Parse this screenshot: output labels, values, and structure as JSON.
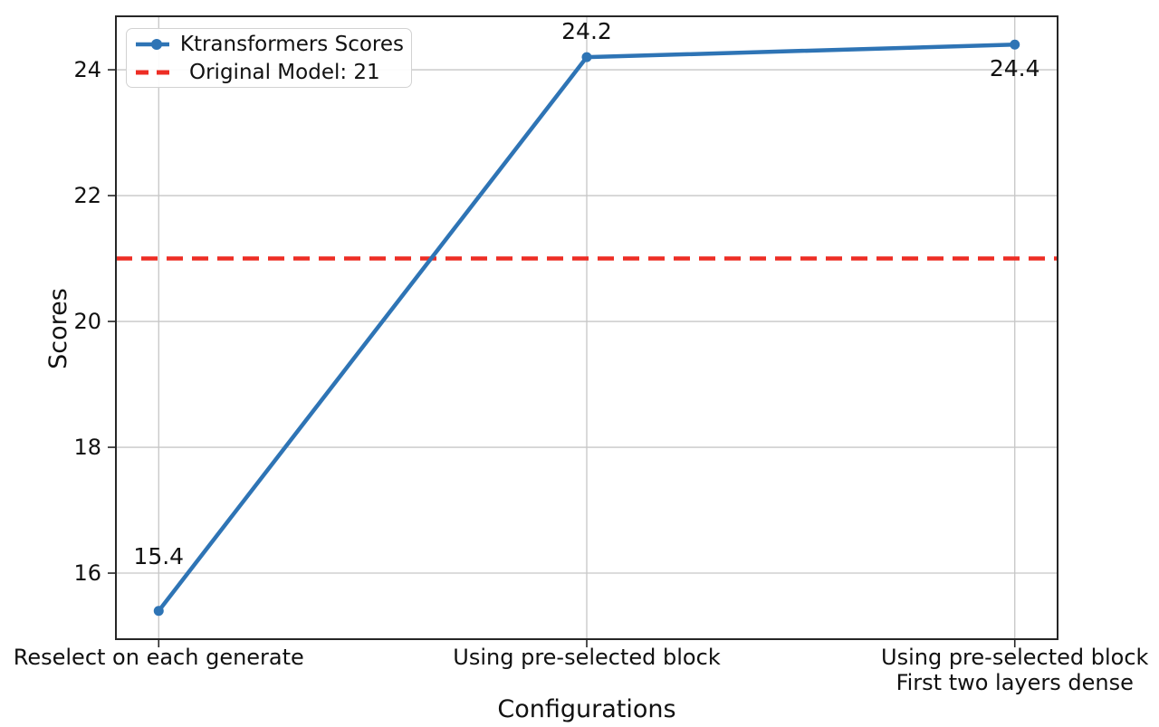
{
  "chart_data": {
    "type": "line",
    "title": "",
    "xlabel": "Configurations",
    "ylabel": "Scores",
    "categories": [
      "Reselect on each generate",
      "Using pre-selected block",
      "Using pre-selected block\nFirst two layers dense"
    ],
    "series": [
      {
        "name": "Ktransformers Scores",
        "values": [
          15.4,
          24.2,
          24.4
        ],
        "data_labels": [
          "15.4",
          "24.2",
          "24.4"
        ],
        "color": "#2e74b5",
        "style": "solid-line-with-circle-markers"
      }
    ],
    "reference_line": {
      "label": "Original Model: 21",
      "value": 21,
      "color": "#ed2d24",
      "style": "dashed"
    },
    "yticks": [
      16,
      18,
      20,
      22,
      24
    ],
    "ylim": [
      14.95,
      24.85
    ],
    "grid": true,
    "legend_position": "upper-left",
    "legend": [
      {
        "label": "Ktransformers Scores",
        "swatch": "solid-line-with-marker",
        "color": "#2e74b5"
      },
      {
        "label": "Original Model: 21",
        "swatch": "dashed-line",
        "color": "#ed2d24"
      }
    ]
  },
  "colors": {
    "background": "#ffffff",
    "series_blue": "#2e74b5",
    "reference_red": "#ed2d24",
    "grid": "#c6c6c6",
    "spine": "#262626",
    "text": "#111111",
    "legend_border": "#d2d2d2"
  }
}
